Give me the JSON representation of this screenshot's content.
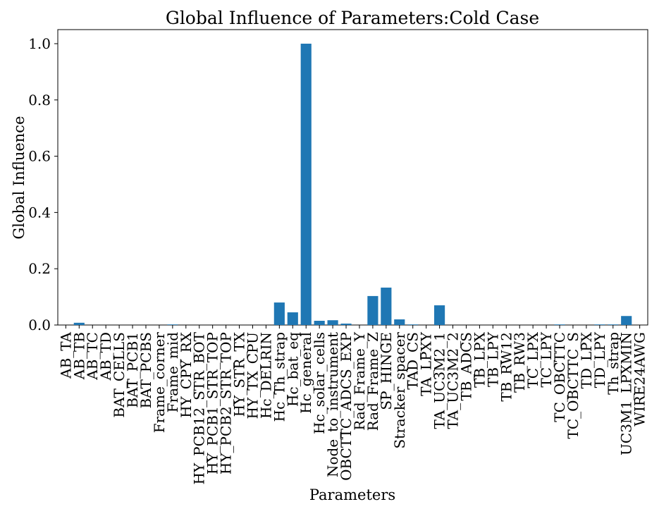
{
  "chart_data": {
    "type": "bar",
    "title": "Global Influence of Parameters:Cold Case",
    "xlabel": "Parameters",
    "ylabel": "Global Influence",
    "ylim": [
      0,
      1.05
    ],
    "yticks": [
      0.0,
      0.2,
      0.4,
      0.6,
      0.8,
      1.0
    ],
    "ytick_labels": [
      "0.0",
      "0.2",
      "0.4",
      "0.6",
      "0.8",
      "1.0"
    ],
    "grid": false,
    "bar_color": "#1f77b4",
    "categories": [
      "AB_TA",
      "AB_TB",
      "AB_TC",
      "AB_TD",
      "BAT_CELLS",
      "BAT_PCB1",
      "BAT_PCBS",
      "Frame_corner",
      "Frame_mid",
      "HY_CPY_RX",
      "HY_PCB12_STR_BOT",
      "HY_PCB1_STR_TOP",
      "HY_PCB2_STR_TOP",
      "HY_STR_TX",
      "HY_TX_CPU",
      "Hc_DELRIN",
      "Hc_Th_strap",
      "Hc_bat_eq",
      "Hc_general",
      "Hc_solar_cells",
      "Node_to_instrument",
      "OBCTTC_ADCS_EXP",
      "Rad_Frame_Y",
      "Rad_Frame_Z",
      "SP_HINGE",
      "Stracker_spacer",
      "TAD_CS",
      "TA_LPXY",
      "TA_UC3M2_1",
      "TA_UC3M2_2",
      "TB_ADCS",
      "TB_LPX",
      "TB_LPY",
      "TB_RW12",
      "TB_RW3",
      "TC_LPX",
      "TC_LPY",
      "TC_OBCTTC",
      "TC_OBCTTC_S",
      "TD_LPX",
      "TD_LPY",
      "Th_strap",
      "UC3M1_LPXMIN",
      "WIRE24AWG"
    ],
    "values": [
      0.0,
      0.008,
      0.0,
      0.0,
      0.0,
      0.0,
      0.0,
      0.0,
      0.002,
      0.0,
      0.0,
      0.0,
      0.0,
      0.0,
      0.0,
      0.0,
      0.08,
      0.045,
      1.0,
      0.015,
      0.017,
      0.005,
      0.0,
      0.103,
      0.133,
      0.02,
      0.002,
      0.0,
      0.07,
      0.0,
      0.0,
      0.0,
      0.0,
      0.0,
      0.0,
      0.0,
      0.0,
      0.002,
      0.0,
      0.0,
      0.002,
      0.002,
      0.032,
      0.0
    ]
  }
}
